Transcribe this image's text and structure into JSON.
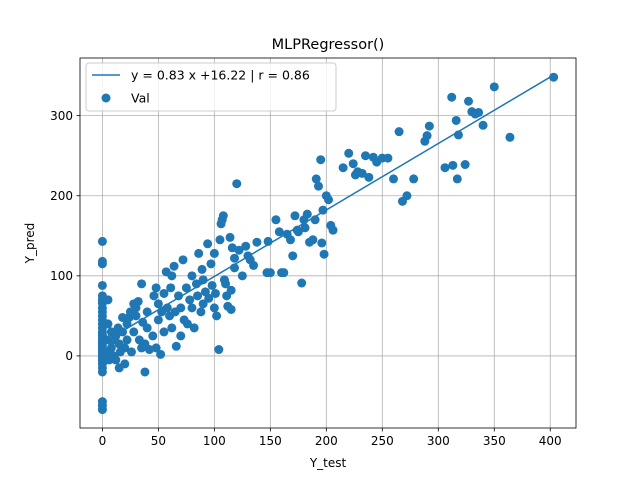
{
  "chart_data": {
    "type": "scatter",
    "title": "MLPRegressor()",
    "xlabel": "Y_test",
    "ylabel": "Y_pred",
    "xlim": [
      -20,
      423
    ],
    "ylim": [
      -90,
      372
    ],
    "xticks": [
      0,
      50,
      100,
      150,
      200,
      250,
      300,
      350,
      400
    ],
    "yticks": [
      0,
      100,
      200,
      300
    ],
    "xtick_labels": [
      "0",
      "50",
      "100",
      "150",
      "200",
      "250",
      "300",
      "350",
      "400"
    ],
    "ytick_labels": [
      "0",
      "100",
      "200",
      "300"
    ],
    "grid": true,
    "legend_position": "top-left",
    "colors": {
      "series": "#1f77b4"
    },
    "fit_line": {
      "label": "y = 0.83 x +16.22 | r = 0.86",
      "slope": 0.83,
      "intercept": 16.22,
      "x_range": [
        0,
        403
      ]
    },
    "series": [
      {
        "name": "Val",
        "points": [
          [
            0,
            143
          ],
          [
            0,
            118
          ],
          [
            0,
            115
          ],
          [
            0,
            88
          ],
          [
            0,
            75
          ],
          [
            0,
            70
          ],
          [
            0,
            66
          ],
          [
            0,
            60
          ],
          [
            0,
            55
          ],
          [
            0,
            50
          ],
          [
            0,
            45
          ],
          [
            0,
            40
          ],
          [
            0,
            35
          ],
          [
            0,
            30
          ],
          [
            0,
            26
          ],
          [
            0,
            22
          ],
          [
            0,
            18
          ],
          [
            0,
            15
          ],
          [
            0,
            12
          ],
          [
            0,
            8
          ],
          [
            0,
            5
          ],
          [
            0,
            2
          ],
          [
            0,
            -2
          ],
          [
            0,
            -6
          ],
          [
            0,
            -10
          ],
          [
            0,
            -15
          ],
          [
            0,
            -20
          ],
          [
            0,
            -57
          ],
          [
            0,
            -62
          ],
          [
            0,
            -67
          ],
          [
            5,
            70
          ],
          [
            5,
            40
          ],
          [
            5,
            20
          ],
          [
            5,
            5
          ],
          [
            6,
            -5
          ],
          [
            8,
            30
          ],
          [
            8,
            10
          ],
          [
            10,
            20
          ],
          [
            10,
            0
          ],
          [
            12,
            25
          ],
          [
            12,
            -5
          ],
          [
            14,
            35
          ],
          [
            15,
            15
          ],
          [
            15,
            -15
          ],
          [
            16,
            5
          ],
          [
            18,
            30
          ],
          [
            18,
            48
          ],
          [
            20,
            10
          ],
          [
            20,
            -10
          ],
          [
            22,
            40
          ],
          [
            22,
            20
          ],
          [
            24,
            48
          ],
          [
            25,
            55
          ],
          [
            26,
            5
          ],
          [
            28,
            65
          ],
          [
            28,
            30
          ],
          [
            30,
            50
          ],
          [
            30,
            60
          ],
          [
            32,
            68
          ],
          [
            33,
            20
          ],
          [
            35,
            90
          ],
          [
            35,
            10
          ],
          [
            36,
            42
          ],
          [
            38,
            -20
          ],
          [
            38,
            15
          ],
          [
            40,
            55
          ],
          [
            40,
            35
          ],
          [
            42,
            8
          ],
          [
            45,
            25
          ],
          [
            46,
            75
          ],
          [
            48,
            85
          ],
          [
            48,
            10
          ],
          [
            50,
            65
          ],
          [
            50,
            45
          ],
          [
            52,
            2
          ],
          [
            53,
            55
          ],
          [
            55,
            78
          ],
          [
            55,
            30
          ],
          [
            57,
            105
          ],
          [
            58,
            60
          ],
          [
            60,
            50
          ],
          [
            61,
            85
          ],
          [
            62,
            100
          ],
          [
            62,
            35
          ],
          [
            64,
            112
          ],
          [
            65,
            55
          ],
          [
            66,
            12
          ],
          [
            68,
            75
          ],
          [
            70,
            60
          ],
          [
            70,
            25
          ],
          [
            72,
            120
          ],
          [
            73,
            45
          ],
          [
            75,
            85
          ],
          [
            76,
            40
          ],
          [
            78,
            70
          ],
          [
            80,
            100
          ],
          [
            80,
            60
          ],
          [
            82,
            35
          ],
          [
            84,
            90
          ],
          [
            85,
            75
          ],
          [
            86,
            128
          ],
          [
            88,
            55
          ],
          [
            89,
            108
          ],
          [
            90,
            95
          ],
          [
            90,
            65
          ],
          [
            92,
            80
          ],
          [
            94,
            140
          ],
          [
            95,
            72
          ],
          [
            97,
            115
          ],
          [
            98,
            88
          ],
          [
            100,
            60
          ],
          [
            100,
            128
          ],
          [
            101,
            78
          ],
          [
            102,
            50
          ],
          [
            104,
            8
          ],
          [
            105,
            145
          ],
          [
            106,
            165
          ],
          [
            107,
            170
          ],
          [
            108,
            175
          ],
          [
            109,
            95
          ],
          [
            110,
            90
          ],
          [
            111,
            75
          ],
          [
            112,
            62
          ],
          [
            114,
            148
          ],
          [
            115,
            82
          ],
          [
            115,
            58
          ],
          [
            116,
            135
          ],
          [
            118,
            110
          ],
          [
            118,
            122
          ],
          [
            120,
            215
          ],
          [
            122,
            132
          ],
          [
            125,
            100
          ],
          [
            128,
            137
          ],
          [
            130,
            125
          ],
          [
            132,
            120
          ],
          [
            135,
            113
          ],
          [
            138,
            142
          ],
          [
            147,
            104
          ],
          [
            148,
            143
          ],
          [
            150,
            104
          ],
          [
            155,
            170
          ],
          [
            158,
            155
          ],
          [
            160,
            104
          ],
          [
            162,
            104
          ],
          [
            165,
            152
          ],
          [
            168,
            145
          ],
          [
            170,
            125
          ],
          [
            172,
            175
          ],
          [
            174,
            157
          ],
          [
            175,
            155
          ],
          [
            178,
            91
          ],
          [
            180,
            170
          ],
          [
            181,
            160
          ],
          [
            183,
            177
          ],
          [
            185,
            142
          ],
          [
            188,
            145
          ],
          [
            190,
            170
          ],
          [
            191,
            221
          ],
          [
            193,
            212
          ],
          [
            195,
            245
          ],
          [
            196,
            141
          ],
          [
            197,
            182
          ],
          [
            198,
            127
          ],
          [
            200,
            200
          ],
          [
            202,
            195
          ],
          [
            204,
            163
          ],
          [
            206,
            157
          ],
          [
            215,
            235
          ],
          [
            220,
            253
          ],
          [
            224,
            240
          ],
          [
            226,
            226
          ],
          [
            228,
            230
          ],
          [
            232,
            228
          ],
          [
            235,
            250
          ],
          [
            238,
            223
          ],
          [
            242,
            248
          ],
          [
            245,
            242
          ],
          [
            250,
            247
          ],
          [
            255,
            247
          ],
          [
            260,
            221
          ],
          [
            265,
            280
          ],
          [
            268,
            193
          ],
          [
            272,
            200
          ],
          [
            278,
            221
          ],
          [
            288,
            268
          ],
          [
            290,
            275
          ],
          [
            292,
            287
          ],
          [
            306,
            235
          ],
          [
            312,
            323
          ],
          [
            313,
            238
          ],
          [
            316,
            294
          ],
          [
            317,
            221
          ],
          [
            318,
            276
          ],
          [
            324,
            239
          ],
          [
            327,
            318
          ],
          [
            330,
            305
          ],
          [
            333,
            302
          ],
          [
            336,
            304
          ],
          [
            340,
            288
          ],
          [
            350,
            336
          ],
          [
            364,
            273
          ],
          [
            403,
            348
          ]
        ]
      }
    ]
  }
}
